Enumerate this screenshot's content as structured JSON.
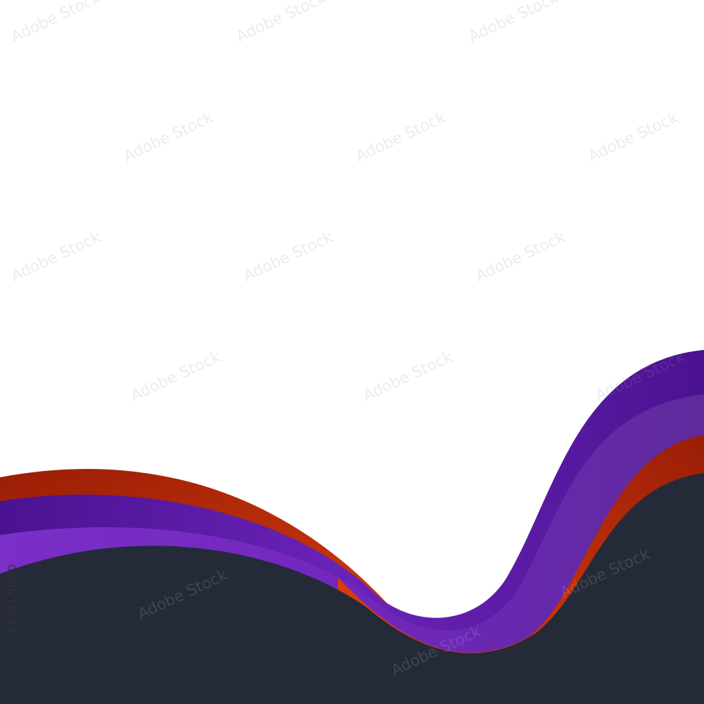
{
  "watermark": {
    "brand": "Adobe Stock",
    "id": "#635170050"
  }
}
